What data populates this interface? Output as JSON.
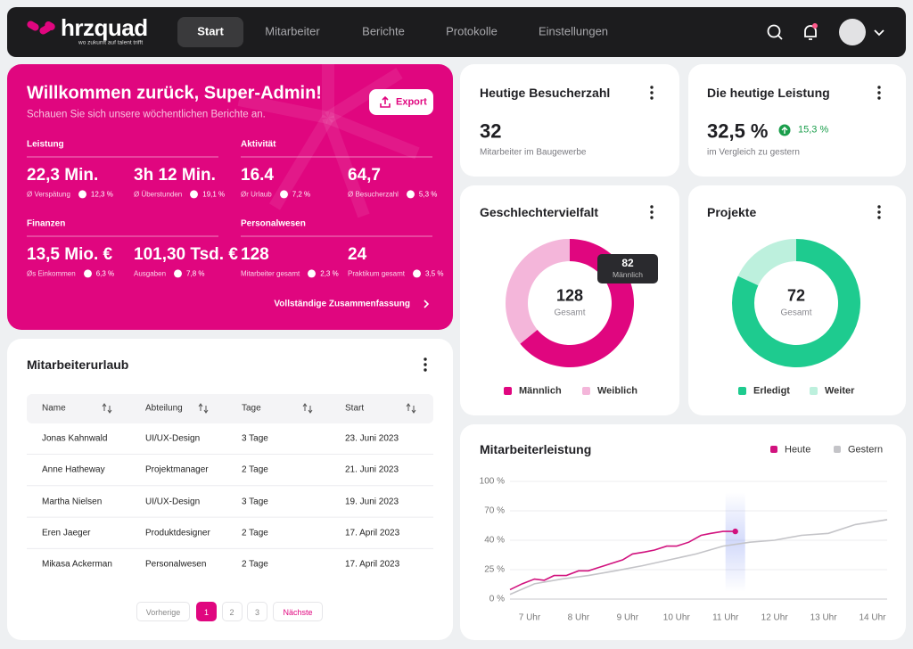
{
  "nav": {
    "logo": "hrzquad",
    "tagline": "wo zukunft auf talent trifft",
    "items": [
      "Start",
      "Mitarbeiter",
      "Berichte",
      "Protokolle",
      "Einstellungen"
    ]
  },
  "welcome": {
    "title": "Willkommen zurück, Super-Admin!",
    "subtitle": "Schauen Sie sich unsere wöchentlichen Berichte an.",
    "export": "Export",
    "sections": [
      {
        "title": "Leistung",
        "stats": [
          {
            "value": "22,3 Min.",
            "label": "Ø Verspätung",
            "change": "12,3 %"
          },
          {
            "value": "3h 12 Min.",
            "label": "Ø Überstunden",
            "change": "19,1 %"
          }
        ]
      },
      {
        "title": "Aktivität",
        "stats": [
          {
            "value": "16.4",
            "label": "Ør Urlaub",
            "change": "7,2 %"
          },
          {
            "value": "64,7",
            "label": "Ø Besucherzahl",
            "change": "5,3 %"
          }
        ]
      },
      {
        "title": "Finanzen",
        "stats": [
          {
            "value": "13,5 Mio. €",
            "label": "Øs Einkommen",
            "change": "6,3 %"
          },
          {
            "value": "101,30 Tsd. €",
            "label": "Ausgaben",
            "change": "7,8 %"
          }
        ]
      },
      {
        "title": "Personalwesen",
        "stats": [
          {
            "value": "128",
            "label": "Mitarbeiter gesamt",
            "change": "2,3 %"
          },
          {
            "value": "24",
            "label": "Praktikum gesamt",
            "change": "3,5 %"
          }
        ]
      }
    ],
    "summary_link": "Vollständige Zusammenfassung"
  },
  "visitors": {
    "title": "Heutige Besucherzahl",
    "value": "32",
    "note": "Mitarbeiter im Baugewerbe"
  },
  "performance": {
    "title": "Die heutige Leistung",
    "value": "32,5 %",
    "change": "15,3 %",
    "note": "im Vergleich zu gestern"
  },
  "leave_table": {
    "title": "Mitarbeiterurlaub",
    "columns": [
      "Name",
      "Abteilung",
      "Tage",
      "Start"
    ],
    "rows": [
      [
        "Jonas Kahnwald",
        "UI/UX-Design",
        "3 Tage",
        "23. Juni 2023"
      ],
      [
        "Anne Hatheway",
        "Projektmanager",
        "2 Tage",
        "21. Juni 2023"
      ],
      [
        "Martha Nielsen",
        "UI/UX-Design",
        "3 Tage",
        "19. Juni 2023"
      ],
      [
        "Eren Jaeger",
        "Produktdesigner",
        "2 Tage",
        "17. April 2023"
      ],
      [
        "Mikasa Ackerman",
        "Personalwesen",
        "2 Tage",
        "17. April 2023"
      ]
    ],
    "pagination": {
      "previous": "Vorherige",
      "pages": [
        "1",
        "2",
        "3"
      ],
      "next": "Nächste"
    }
  },
  "chart_data": [
    {
      "type": "donut",
      "title": "Geschlechtervielfalt",
      "categories": [
        "Männlich",
        "Weiblich"
      ],
      "values": [
        82,
        46
      ],
      "colors": [
        "#e0067f",
        "#f4b6da"
      ],
      "center_value": "128",
      "center_label": "Gesamt",
      "tooltip": 0
    },
    {
      "type": "donut",
      "title": "Projekte",
      "categories": [
        "Erledigt",
        "Weiter"
      ],
      "values": [
        59,
        13
      ],
      "colors": [
        "#1ecb8f",
        "#bdf0dd"
      ],
      "center_value": "72",
      "center_label": "Gesamt"
    },
    {
      "type": "line",
      "title": "Mitarbeiterleistung",
      "grid": true,
      "legend": "top-right",
      "xlim": [
        6.6,
        14.3
      ],
      "xticks": [
        {
          "value": 7,
          "label": "7 Uhr"
        },
        {
          "value": 8,
          "label": "8 Uhr"
        },
        {
          "value": 9,
          "label": "9 Uhr"
        },
        {
          "value": 10,
          "label": "10 Uhr"
        },
        {
          "value": 11,
          "label": "11 Uhr"
        },
        {
          "value": 12,
          "label": "12 Uhr"
        },
        {
          "value": 13,
          "label": "13 Uhr"
        },
        {
          "value": 14,
          "label": "14 Uhr"
        }
      ],
      "ylim": [
        0,
        100
      ],
      "yticks": [
        {
          "value": 0,
          "label": "0 %"
        },
        {
          "value": 25,
          "label": "25 %"
        },
        {
          "value": 40,
          "label": "40 %"
        },
        {
          "value": 70,
          "label": "70 %"
        },
        {
          "value": 100,
          "label": "100 %"
        }
      ],
      "series": [
        {
          "name": "Heute",
          "color": "#d1127e",
          "x": [
            6.6,
            6.85,
            7.1,
            7.3,
            7.5,
            7.75,
            8,
            8.2,
            8.4,
            8.65,
            8.9,
            9.1,
            9.35,
            9.55,
            9.8,
            10,
            10.25,
            10.5,
            10.7,
            10.95,
            11.2
          ],
          "values": [
            8,
            13,
            17,
            16,
            20,
            20,
            24,
            24,
            26,
            28,
            30,
            33,
            34,
            35,
            37,
            37,
            39,
            45,
            47,
            49,
            49
          ]
        },
        {
          "name": "Gestern",
          "color": "#c4c4c8",
          "x": [
            6.6,
            7.1,
            7.65,
            8.2,
            8.75,
            9.3,
            9.85,
            10.4,
            10.95,
            11.5,
            12,
            12.55,
            13.1,
            13.65,
            14.3
          ],
          "values": [
            4,
            13,
            17,
            20,
            24,
            27,
            30,
            33,
            37,
            39,
            40,
            45,
            47,
            56,
            61
          ]
        }
      ]
    }
  ]
}
